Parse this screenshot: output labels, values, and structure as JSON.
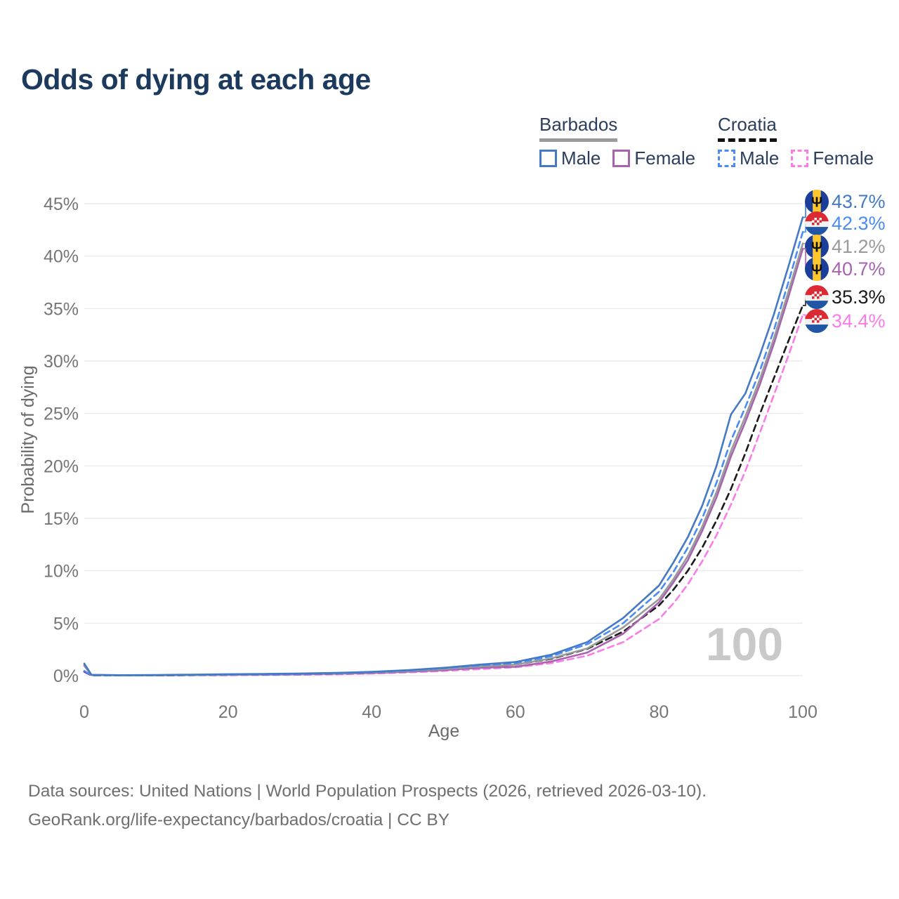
{
  "title": "Odds of dying at each age",
  "legend": {
    "groups": [
      {
        "id": "barbados",
        "label": "Barbados",
        "line_style": "solid",
        "line_color": "#9a9a9a",
        "items": [
          {
            "label": "Male",
            "color": "#4479c4",
            "style": "solid"
          },
          {
            "label": "Female",
            "color": "#a763ae",
            "style": "solid"
          }
        ]
      },
      {
        "id": "croatia",
        "label": "Croatia",
        "line_style": "dashed",
        "line_color": "#111111",
        "items": [
          {
            "label": "Male",
            "color": "#4a8cf5",
            "style": "dashed"
          },
          {
            "label": "Female",
            "color": "#fa7ce8",
            "style": "dashed"
          }
        ]
      }
    ]
  },
  "chart_data": {
    "type": "line",
    "title": "Odds of dying at each age",
    "xlabel": "Age",
    "ylabel": "Probability of dying",
    "xlim": [
      0,
      100
    ],
    "ylim": [
      0,
      45
    ],
    "x_ticks": [
      0,
      20,
      40,
      60,
      80,
      100
    ],
    "y_ticks": [
      0,
      5,
      10,
      15,
      20,
      25,
      30,
      35,
      40,
      45
    ],
    "y_tick_suffix": "%",
    "grid": "horizontal",
    "legend_position": "top-right",
    "watermark": "100",
    "x": [
      0,
      1,
      5,
      10,
      15,
      20,
      25,
      30,
      35,
      40,
      45,
      50,
      55,
      60,
      65,
      70,
      75,
      80,
      82,
      84,
      86,
      88,
      90,
      92,
      94,
      96,
      98,
      100
    ],
    "series": [
      {
        "id": "croatia-female",
        "name": "Croatia Female",
        "country": "Croatia",
        "sex": "Female",
        "flag": "croatia",
        "color": "#fa7ce8",
        "dash": "dashed",
        "end_label": "34.4%",
        "values": [
          0.35,
          0.02,
          0.02,
          0.02,
          0.04,
          0.05,
          0.07,
          0.09,
          0.13,
          0.2,
          0.31,
          0.45,
          0.62,
          0.8,
          1.2,
          1.9,
          3.2,
          5.4,
          6.9,
          8.7,
          10.9,
          13.4,
          16.3,
          19.5,
          23.1,
          26.8,
          30.5,
          34.4
        ]
      },
      {
        "id": "croatia-total",
        "name": "Croatia Both sexes",
        "country": "Croatia",
        "sex": "Both",
        "flag": "croatia",
        "color": "#1a1a1a",
        "dash": "dashed",
        "end_label": "35.3%",
        "values": [
          0.4,
          0.03,
          0.02,
          0.02,
          0.05,
          0.08,
          0.1,
          0.13,
          0.18,
          0.26,
          0.4,
          0.6,
          0.85,
          1.05,
          1.6,
          2.55,
          4.2,
          6.7,
          8.2,
          10.0,
          12.2,
          14.8,
          17.8,
          21.2,
          24.9,
          28.4,
          31.9,
          35.3
        ]
      },
      {
        "id": "barbados-female",
        "name": "Barbados Female",
        "country": "Barbados",
        "sex": "Female",
        "flag": "barbados",
        "color": "#a763ae",
        "dash": "solid",
        "end_label": "40.7%",
        "values": [
          0.95,
          0.07,
          0.04,
          0.04,
          0.06,
          0.08,
          0.1,
          0.13,
          0.18,
          0.25,
          0.37,
          0.52,
          0.75,
          0.85,
          1.35,
          2.2,
          4.0,
          7.0,
          8.9,
          11.0,
          13.8,
          17.0,
          20.9,
          24.2,
          27.7,
          31.7,
          36.1,
          40.7
        ]
      },
      {
        "id": "barbados-total",
        "name": "Barbados Both sexes",
        "country": "Barbados",
        "sex": "Both",
        "flag": "barbados",
        "color": "#9a9a9a",
        "dash": "solid",
        "end_label": "41.2%",
        "values": [
          1.05,
          0.07,
          0.04,
          0.05,
          0.08,
          0.11,
          0.14,
          0.17,
          0.22,
          0.3,
          0.44,
          0.62,
          0.88,
          1.05,
          1.65,
          2.6,
          4.6,
          7.3,
          9.2,
          11.4,
          14.2,
          17.5,
          21.4,
          24.7,
          28.2,
          32.2,
          36.6,
          41.2
        ]
      },
      {
        "id": "croatia-male",
        "name": "Croatia Male",
        "country": "Croatia",
        "sex": "Male",
        "flag": "croatia",
        "color": "#4a8cf5",
        "dash": "dashed",
        "end_label": "42.3%",
        "values": [
          0.45,
          0.03,
          0.02,
          0.03,
          0.06,
          0.1,
          0.13,
          0.16,
          0.22,
          0.32,
          0.48,
          0.7,
          0.98,
          1.2,
          1.85,
          3.0,
          5.0,
          8.0,
          9.9,
          12.2,
          15.0,
          18.4,
          22.4,
          25.6,
          29.0,
          33.0,
          37.5,
          42.3
        ]
      },
      {
        "id": "barbados-male",
        "name": "Barbados Male",
        "country": "Barbados",
        "sex": "Male",
        "flag": "barbados",
        "color": "#4479c4",
        "dash": "solid",
        "end_label": "43.7%",
        "values": [
          1.15,
          0.08,
          0.05,
          0.06,
          0.1,
          0.14,
          0.17,
          0.21,
          0.27,
          0.36,
          0.52,
          0.75,
          1.05,
          1.3,
          2.0,
          3.2,
          5.5,
          8.6,
          10.8,
          13.2,
          16.2,
          20.0,
          24.9,
          26.9,
          30.5,
          34.5,
          39.0,
          43.7
        ]
      }
    ]
  },
  "source": {
    "line1": "Data sources: United Nations | World Population Prospects (2026, retrieved 2026-03-10).",
    "line2": "GeoRank.org/life-expectancy/barbados/croatia | CC BY"
  },
  "colors": {
    "title_text": "#1c3a5e",
    "legend_text": "#2c3e5d",
    "tick_text": "#767676",
    "axis_label_text": "#6b6b6b",
    "gridline": "#ebebeb",
    "watermark": "#c9c9c9",
    "source_text": "#6f6f6f"
  }
}
